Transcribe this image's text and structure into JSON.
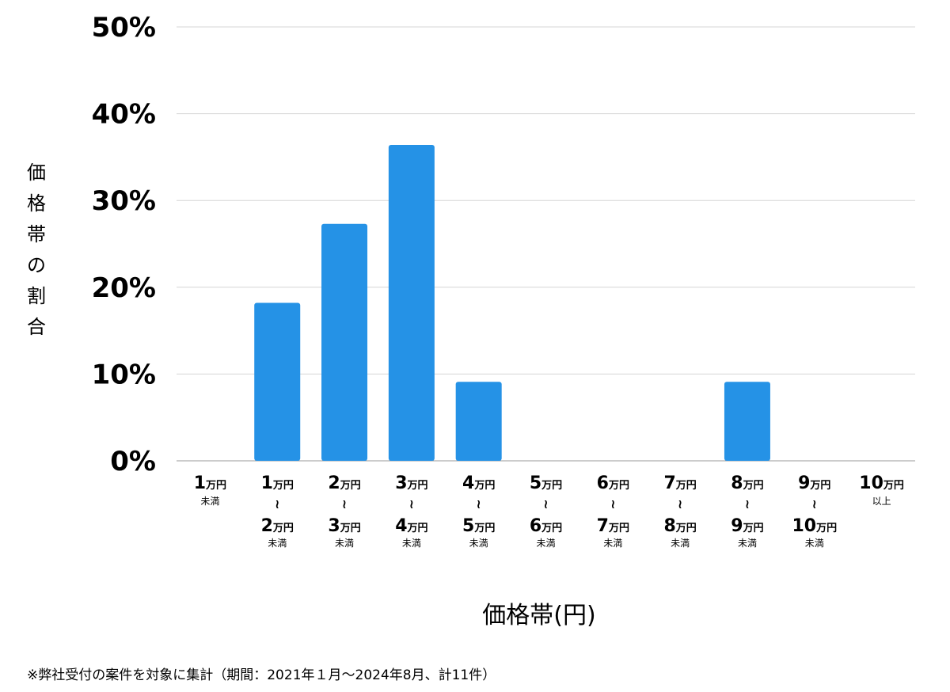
{
  "chart_data": {
    "type": "bar",
    "title": "",
    "xlabel": "価格帯(円)",
    "ylabel": "価格帯の割合",
    "ylim": [
      0,
      50
    ],
    "yticks": [
      "0%",
      "10%",
      "20%",
      "30%",
      "40%",
      "50%"
    ],
    "grid": true,
    "bar_color": "#2592e6",
    "categories": [
      {
        "top_num": "1",
        "top_unit": "万円",
        "tilde": "",
        "bottom_num": "",
        "bottom_unit": "",
        "note": "未満"
      },
      {
        "top_num": "1",
        "top_unit": "万円",
        "tilde": "≀",
        "bottom_num": "2",
        "bottom_unit": "万円",
        "note": "未満"
      },
      {
        "top_num": "2",
        "top_unit": "万円",
        "tilde": "≀",
        "bottom_num": "3",
        "bottom_unit": "万円",
        "note": "未満"
      },
      {
        "top_num": "3",
        "top_unit": "万円",
        "tilde": "≀",
        "bottom_num": "4",
        "bottom_unit": "万円",
        "note": "未満"
      },
      {
        "top_num": "4",
        "top_unit": "万円",
        "tilde": "≀",
        "bottom_num": "5",
        "bottom_unit": "万円",
        "note": "未満"
      },
      {
        "top_num": "5",
        "top_unit": "万円",
        "tilde": "≀",
        "bottom_num": "6",
        "bottom_unit": "万円",
        "note": "未満"
      },
      {
        "top_num": "6",
        "top_unit": "万円",
        "tilde": "≀",
        "bottom_num": "7",
        "bottom_unit": "万円",
        "note": "未満"
      },
      {
        "top_num": "7",
        "top_unit": "万円",
        "tilde": "≀",
        "bottom_num": "8",
        "bottom_unit": "万円",
        "note": "未満"
      },
      {
        "top_num": "8",
        "top_unit": "万円",
        "tilde": "≀",
        "bottom_num": "9",
        "bottom_unit": "万円",
        "note": "未満"
      },
      {
        "top_num": "9",
        "top_unit": "万円",
        "tilde": "≀",
        "bottom_num": "10",
        "bottom_unit": "万円",
        "note": "未満"
      },
      {
        "top_num": "10",
        "top_unit": "万円",
        "tilde": "",
        "bottom_num": "",
        "bottom_unit": "",
        "note": "以上"
      }
    ],
    "values": [
      0,
      18.2,
      27.3,
      36.4,
      9.1,
      0,
      0,
      0,
      9.1,
      0,
      0
    ]
  },
  "footnote": "※弊社受付の案件を対象に集計（期間：2021年１月〜2024年8月、計11件）"
}
